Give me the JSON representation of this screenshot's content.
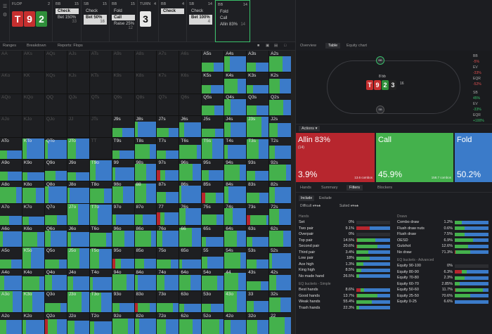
{
  "colors": {
    "allin": "#b7262e",
    "call": "#44b14c",
    "fold": "#3b7bc9",
    "raise": "#c44040"
  },
  "header": {
    "flop_label": "FLOP",
    "flop_num": "2",
    "flop_cards": [
      "T",
      "9",
      "2"
    ],
    "turn_label": "TURN",
    "turn_num": "4",
    "turn_card": "3"
  },
  "positions": [
    {
      "pos": "BB",
      "num": "15",
      "actions": [
        "Check",
        "Bet 150%"
      ],
      "sizes": [
        "",
        "33"
      ],
      "sel": 0
    },
    {
      "pos": "SB",
      "num": "15",
      "actions": [
        "Check",
        "Bet 50%"
      ],
      "sizes": [
        "",
        "16"
      ],
      "sel": 1
    },
    {
      "pos": "BB",
      "num": "15",
      "actions": [
        "Fold",
        "Call",
        "Raise 25%"
      ],
      "sizes": [
        "",
        "",
        "12"
      ],
      "sel": 1
    },
    {
      "pos": "BB",
      "num": "4",
      "actions": [
        "Check"
      ],
      "sizes": [
        ""
      ],
      "sel": 0
    },
    {
      "pos": "SB",
      "num": "14",
      "actions": [
        "Check",
        "Bet 100%"
      ],
      "sizes": [
        "",
        "4"
      ],
      "sel": 1
    },
    {
      "pos": "BB",
      "num": "14",
      "actions": [
        "Fold",
        "Call",
        "Allin 83%"
      ],
      "sizes": [
        "",
        "",
        "14"
      ],
      "sel": -1
    }
  ],
  "toolbar": {
    "ranges": "Ranges",
    "breakdown": "Breakdown",
    "reports": "Reports: Flops"
  },
  "grid": [
    [
      "AA",
      "AKs",
      "AQs",
      "AJs",
      "ATs",
      "A9s",
      "A8s",
      "A7s",
      "A6s",
      "A5s",
      "A4s",
      "A3s",
      "A2s"
    ],
    [
      "AKo",
      "KK",
      "KQs",
      "KJs",
      "KTs",
      "K9s",
      "K8s",
      "K7s",
      "K6s",
      "K5s",
      "K4s",
      "K3s",
      "K2s"
    ],
    [
      "AQo",
      "KQo",
      "QQ",
      "QJs",
      "QTs",
      "Q9s",
      "Q8s",
      "Q7s",
      "Q6s",
      "Q5s",
      "Q4s",
      "Q3s",
      "Q2s"
    ],
    [
      "AJo",
      "KJo",
      "QJo",
      "JJ",
      "JTs",
      "J9s",
      "J8s",
      "J7s",
      "J6s",
      "J5s",
      "J4s",
      "J3s",
      "J2s"
    ],
    [
      "ATo",
      "KTo",
      "QTo",
      "JTo",
      "TT",
      "T9s",
      "T8s",
      "T7s",
      "T6s",
      "T5s",
      "T4s",
      "T3s",
      "T2s"
    ],
    [
      "A9o",
      "K9o",
      "Q9o",
      "J9o",
      "T9o",
      "99",
      "98s",
      "97s",
      "96s",
      "95s",
      "94s",
      "93s",
      "92s"
    ],
    [
      "A8o",
      "K8o",
      "Q8o",
      "J8o",
      "T8o",
      "98o",
      "88",
      "87s",
      "86s",
      "85s",
      "84s",
      "83s",
      "82s"
    ],
    [
      "A7o",
      "K7o",
      "Q7o",
      "J7o",
      "T7o",
      "97o",
      "87o",
      "77",
      "76s",
      "75s",
      "74s",
      "73s",
      "72s"
    ],
    [
      "A6o",
      "K6o",
      "Q6o",
      "J6o",
      "T6o",
      "96o",
      "86o",
      "76o",
      "66",
      "65s",
      "64s",
      "63s",
      "62s"
    ],
    [
      "A5o",
      "K5o",
      "Q5o",
      "J5o",
      "T5o",
      "95o",
      "85o",
      "75o",
      "65o",
      "55",
      "54s",
      "53s",
      "52s"
    ],
    [
      "A4o",
      "K4o",
      "Q4o",
      "J4o",
      "T4o",
      "94o",
      "84o",
      "74o",
      "64o",
      "54o",
      "44",
      "43s",
      "42s"
    ],
    [
      "A3o",
      "K3o",
      "Q3o",
      "J3o",
      "T3o",
      "93o",
      "83o",
      "73o",
      "63o",
      "53o",
      "43o",
      "33",
      "32s"
    ],
    [
      "A2o",
      "K2o",
      "Q2o",
      "J2o",
      "T2o",
      "92o",
      "82o",
      "72o",
      "62o",
      "52o",
      "42o",
      "32o",
      "22"
    ]
  ],
  "right_tabs": {
    "overview": "Overview",
    "table": "Table",
    "equity": "Equity chart"
  },
  "table": {
    "pot": "8 bb",
    "board": [
      "T",
      "9",
      "2",
      "3"
    ],
    "stack": "16",
    "bb_label": "BB",
    "sb_label": "SB",
    "ev": "EV",
    "eqr": "EQR",
    "bb_val": "-5%",
    "sb_val": "-33%",
    "bb_eq": "-52%",
    "ev_val": "-33%",
    "eq_val": "45%",
    "eqr_val": "+100%"
  },
  "actions_btn": "Actions",
  "strategy": [
    {
      "name": "Allin 83%",
      "sub": "(14)",
      "pct": "3.9%",
      "combos": "13.6 combos",
      "color": "#b7262e",
      "flex": 112
    },
    {
      "name": "Call",
      "sub": "",
      "pct": "45.9%",
      "combos": "158.7 combos",
      "color": "#44b14c",
      "flex": 110
    },
    {
      "name": "Fold",
      "sub": "",
      "pct": "50.2%",
      "combos": "",
      "color": "#3b7bc9",
      "flex": 54
    }
  ],
  "subtabs": {
    "hands": "Hands",
    "summary": "Summary",
    "filters": "Filters",
    "blockers": "Blockers"
  },
  "filter": {
    "include": "Include",
    "exclude": "Exclude",
    "difficult": "Difficult",
    "suited": "Suited"
  },
  "hands_section": "Hands",
  "hands": [
    {
      "n": "Set",
      "v": "0%",
      "r": 0,
      "g": 0
    },
    {
      "n": "Two pair",
      "v": "9.1%",
      "r": 40,
      "g": 0
    },
    {
      "n": "Overpair",
      "v": "0%",
      "r": 0,
      "g": 0
    },
    {
      "n": "Top pair",
      "v": "14.5%",
      "r": 2,
      "g": 55
    },
    {
      "n": "Second pair",
      "v": "20.6%",
      "r": 2,
      "g": 60
    },
    {
      "n": "Third pair",
      "v": "3.4%",
      "r": 0,
      "g": 35
    },
    {
      "n": "Low pair",
      "v": "18%",
      "r": 0,
      "g": 40
    },
    {
      "n": "Ace high",
      "v": "1.3%",
      "r": 0,
      "g": 20
    },
    {
      "n": "King high",
      "v": "8.5%",
      "r": 0,
      "g": 15
    },
    {
      "n": "No made hand",
      "v": "26.5%",
      "r": 0,
      "g": 8
    }
  ],
  "eq_simple_section": "EQ buckets - Simple",
  "eq_simple": [
    {
      "n": "Best hands",
      "v": "8.6%",
      "r": 12,
      "g": 10
    },
    {
      "n": "Good hands",
      "v": "13.7%",
      "r": 3,
      "g": 60
    },
    {
      "n": "Weak hands",
      "v": "55.4%",
      "r": 0,
      "g": 45
    },
    {
      "n": "Trash hands",
      "v": "22.3%",
      "r": 0,
      "g": 8
    }
  ],
  "draws_section": "Draws",
  "draws": [
    {
      "n": "Combo draw",
      "v": "1.2%",
      "r": 0,
      "g": 20
    },
    {
      "n": "Flush draw nuts",
      "v": "0.6%",
      "r": 0,
      "g": 30
    },
    {
      "n": "Flush draw",
      "v": "7.5%",
      "r": 0,
      "g": 30
    },
    {
      "n": "OESD",
      "v": "6.9%",
      "r": 0,
      "g": 55
    },
    {
      "n": "Gutshot",
      "v": "12.6%",
      "r": 0,
      "g": 40
    },
    {
      "n": "No draw",
      "v": "71.3%",
      "r": 3,
      "g": 42
    }
  ],
  "eq_adv_section": "EQ buckets - Advanced",
  "eq_adv": [
    {
      "n": "Equity 90-100",
      "v": "0%",
      "r": 0,
      "g": 0
    },
    {
      "n": "Equity 80-90",
      "v": "6.3%",
      "r": 20,
      "g": 15
    },
    {
      "n": "Equity 70-80",
      "v": "2.3%",
      "r": 0,
      "g": 30
    },
    {
      "n": "Equity 60-70",
      "v": "2.85%",
      "r": 0,
      "g": 15
    },
    {
      "n": "Equity 50-60",
      "v": "11.7%",
      "r": 3,
      "g": 80
    },
    {
      "n": "Equity 25-50",
      "v": "70.6%",
      "r": 0,
      "g": 45
    },
    {
      "n": "Equity 0-25",
      "v": "6.6%",
      "r": 0,
      "g": 0
    }
  ]
}
